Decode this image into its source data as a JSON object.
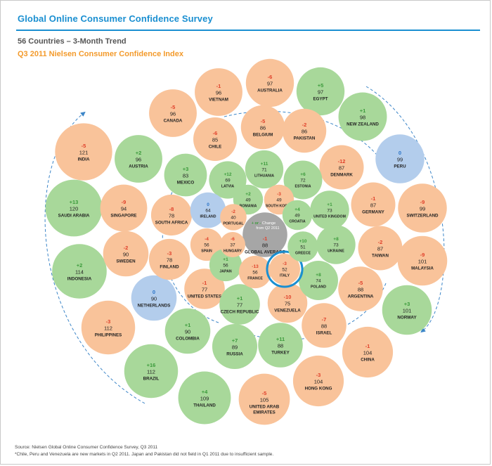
{
  "header": {
    "title": "Global Online Consumer Confidence Survey",
    "subtitle": "56 Countries – 3-Month Trend",
    "index_title": "Q3 2011 Nielsen Consumer Confidence Index"
  },
  "legend": {
    "prefix": "+ or -",
    "line1": "Change",
    "line2": "from Q2 2011"
  },
  "footer": {
    "source": "Source: Nielsen Global Online Consumer Confidence Survey, Q3 2011",
    "note": "*Chile, Peru and Venezuela are new markets in Q2 2011. Japan and Pakistan did not field in Q1 2011 due to insufficient sample."
  },
  "colors": {
    "increase": "#a8d89a",
    "decrease": "#f9c39a",
    "no_change": "#b3cdec",
    "global": "#a6a6a6",
    "positive_text": "#3a9a3a",
    "negative_text": "#e0402a",
    "zero_text": "#2a74c8",
    "highlight_ring": "#1a8fd1",
    "trend_arrow": "#3d86c8"
  },
  "chart_data": {
    "type": "bubble",
    "value_label": "Consumer Confidence Index",
    "change_label": "Change from Q2 2011",
    "highlighted": "ITALY",
    "countries": [
      {
        "name": "AUSTRALIA",
        "index": 97,
        "change": -6
      },
      {
        "name": "VIETNAM",
        "index": 96,
        "change": -1
      },
      {
        "name": "EGYPT",
        "index": 97,
        "change": 5
      },
      {
        "name": "CANADA",
        "index": 96,
        "change": -5
      },
      {
        "name": "BELGIUM",
        "index": 86,
        "change": -5
      },
      {
        "name": "PAKISTAN",
        "index": 86,
        "change": -2
      },
      {
        "name": "NEW ZEALAND",
        "index": 98,
        "change": 1
      },
      {
        "name": "CHILE",
        "index": 85,
        "change": -6
      },
      {
        "name": "INDIA",
        "index": 121,
        "change": -5
      },
      {
        "name": "AUSTRIA",
        "index": 96,
        "change": 2
      },
      {
        "name": "PERU",
        "index": 99,
        "change": 0
      },
      {
        "name": "LITHUANIA",
        "index": 71,
        "change": 11
      },
      {
        "name": "DENMARK",
        "index": 87,
        "change": -12
      },
      {
        "name": "MEXICO",
        "index": 83,
        "change": 3
      },
      {
        "name": "LATVIA",
        "index": 69,
        "change": 12
      },
      {
        "name": "ESTONIA",
        "index": 72,
        "change": 6
      },
      {
        "name": "SAUDI ARABIA",
        "index": 120,
        "change": 13
      },
      {
        "name": "SINGAPORE",
        "index": 94,
        "change": -9
      },
      {
        "name": "ROMANIA",
        "index": 49,
        "change": 2
      },
      {
        "name": "SOUTH KOREA",
        "index": 49,
        "change": -3
      },
      {
        "name": "GERMANY",
        "index": 87,
        "change": -1
      },
      {
        "name": "SWITZERLAND",
        "index": 99,
        "change": -9
      },
      {
        "name": "IRELAND",
        "index": 64,
        "change": 0
      },
      {
        "name": "UNITED KINGDOM",
        "index": 73,
        "change": 1
      },
      {
        "name": "SOUTH AFRICA",
        "index": 78,
        "change": -8
      },
      {
        "name": "PORTUGAL",
        "index": 40,
        "change": -2
      },
      {
        "name": "CROATIA",
        "index": 49,
        "change": 4
      },
      {
        "name": "GLOBAL AVERAGE",
        "index": 88,
        "change": -1
      },
      {
        "name": "SPAIN",
        "index": 56,
        "change": -4
      },
      {
        "name": "HUNGARY",
        "index": 37,
        "change": -6
      },
      {
        "name": "GREECE",
        "index": 51,
        "change": 10
      },
      {
        "name": "UKRAINE",
        "index": 73,
        "change": 8
      },
      {
        "name": "TAIWAN",
        "index": 87,
        "change": -2
      },
      {
        "name": "INDONESIA",
        "index": 114,
        "change": 2
      },
      {
        "name": "SWEDEN",
        "index": 90,
        "change": -2
      },
      {
        "name": "FINLAND",
        "index": 78,
        "change": -3
      },
      {
        "name": "JAPAN",
        "index": 56,
        "change": 1
      },
      {
        "name": "FRANCE",
        "index": 56,
        "change": -13
      },
      {
        "name": "ITALY",
        "index": 52,
        "change": -3
      },
      {
        "name": "MALAYSIA",
        "index": 101,
        "change": -9
      },
      {
        "name": "POLAND",
        "index": 74,
        "change": 8
      },
      {
        "name": "NETHERLANDS",
        "index": 90,
        "change": 0
      },
      {
        "name": "UNITED STATES",
        "index": 77,
        "change": -1
      },
      {
        "name": "ARGENTINA",
        "index": 88,
        "change": -5
      },
      {
        "name": "CZECH REPUBLIC",
        "index": 77,
        "change": 1
      },
      {
        "name": "VENEZUELA",
        "index": 75,
        "change": -10
      },
      {
        "name": "NORWAY",
        "index": 101,
        "change": 3
      },
      {
        "name": "PHILIPPINES",
        "index": 112,
        "change": -3
      },
      {
        "name": "COLOMBIA",
        "index": 90,
        "change": 1
      },
      {
        "name": "ISRAEL",
        "index": 88,
        "change": -7
      },
      {
        "name": "RUSSIA",
        "index": 89,
        "change": 7
      },
      {
        "name": "TURKEY",
        "index": 88,
        "change": 11
      },
      {
        "name": "CHINA",
        "index": 104,
        "change": -1
      },
      {
        "name": "BRAZIL",
        "index": 112,
        "change": 16
      },
      {
        "name": "HONG KONG",
        "index": 104,
        "change": -3
      },
      {
        "name": "THAILAND",
        "index": 109,
        "change": 4
      },
      {
        "name": "UNITED ARAB EMIRATES",
        "index": 105,
        "change": -5
      }
    ]
  }
}
